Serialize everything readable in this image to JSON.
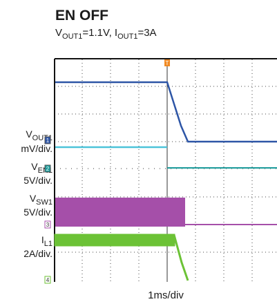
{
  "title": "EN OFF",
  "subtitle": {
    "parts": [
      "V",
      "OUT1",
      "=1.1V, I",
      "OUT1",
      "=3A"
    ]
  },
  "trigger": "T",
  "channels": [
    {
      "name": "V",
      "sub": "OUT1",
      "scale": "mV/div.",
      "marker": "1"
    },
    {
      "name": "V",
      "sub": "EN1",
      "scale": "5V/div.",
      "marker": "2"
    },
    {
      "name": "V",
      "sub": "SW1",
      "scale": "5V/div.",
      "marker": "3"
    },
    {
      "name": "I",
      "sub": "L1",
      "scale": "2A/div.",
      "marker": "4"
    }
  ],
  "timebase": "1ms/div"
}
